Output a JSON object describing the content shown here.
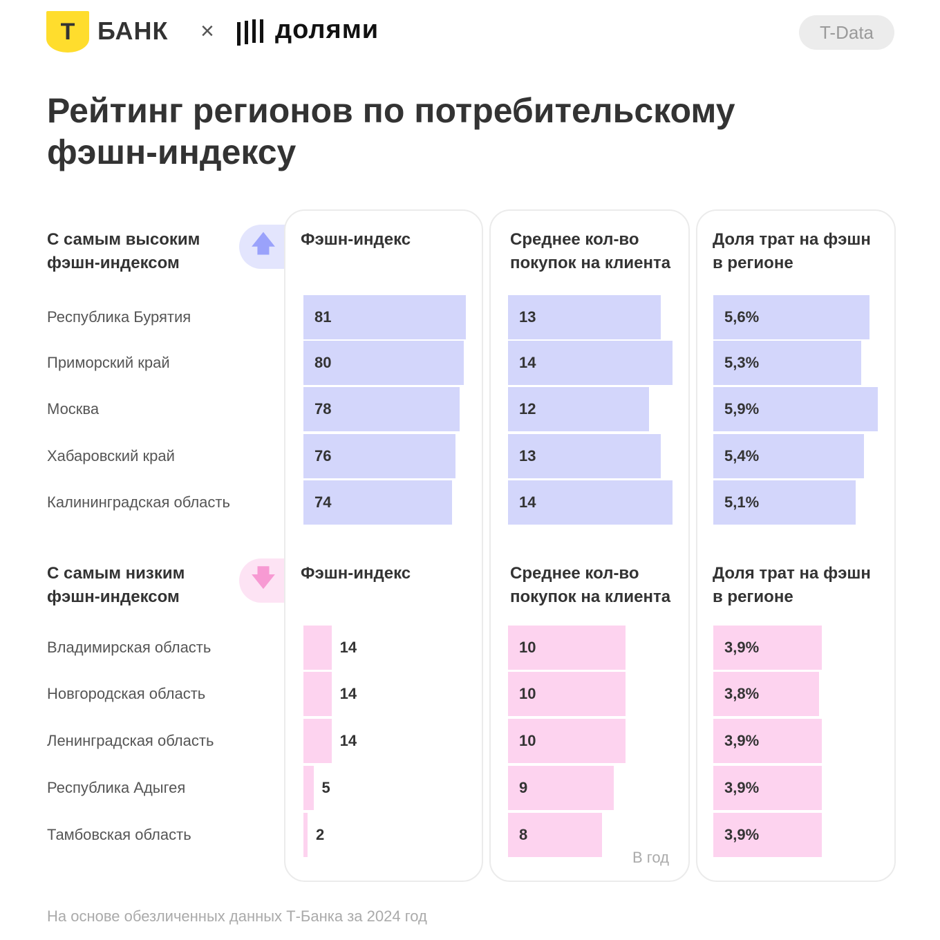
{
  "header": {
    "bank_logo": "БАНК",
    "bank_logo_letter": "Т",
    "times": "×",
    "partner_logo": "||||ДОЛЯМИ",
    "partner_text": "долями",
    "badge": "T-Data"
  },
  "title": "Рейтинг регионов по потребительскому фэшн-индексу",
  "colors": {
    "high": "#d3d6fb",
    "low": "#fdd3ef",
    "high_icon": "#9aa2fb",
    "low_icon": "#f79ad3",
    "brand": "#ffdd2d"
  },
  "chart_data": [
    {
      "type": "bar",
      "title": "С самым высоким фэшн-индексом",
      "icon": "arrow-up-icon",
      "categories": [
        "Республика Бурятия",
        "Приморский край",
        "Москва",
        "Хабаровский край",
        "Калининградская область"
      ],
      "series": [
        {
          "name": "Фэшн-индекс",
          "values": [
            81,
            80,
            78,
            76,
            74
          ],
          "labels": [
            "81",
            "80",
            "78",
            "76",
            "74"
          ]
        },
        {
          "name": "Среднее кол-во покупок на клиента",
          "values": [
            13,
            14,
            12,
            13,
            14
          ],
          "labels": [
            "13",
            "14",
            "12",
            "13",
            "14"
          ]
        },
        {
          "name": "Доля трат на фэшн в регионе",
          "values": [
            5.6,
            5.3,
            5.9,
            5.4,
            5.1
          ],
          "labels": [
            "5,6%",
            "5,3%",
            "5,9%",
            "5,4%",
            "5,1%"
          ]
        }
      ]
    },
    {
      "type": "bar",
      "title": "С самым низким фэшн-индексом",
      "icon": "arrow-down-icon",
      "categories": [
        "Владимирская область",
        "Новгородская область",
        "Ленинградская область",
        "Республика Адыгея",
        "Тамбовская область"
      ],
      "series": [
        {
          "name": "Фэшн-индекс",
          "values": [
            14,
            14,
            14,
            5,
            2
          ],
          "labels": [
            "14",
            "14",
            "14",
            "5",
            "2"
          ]
        },
        {
          "name": "Среднее кол-во покупок на клиента",
          "values": [
            10,
            10,
            10,
            9,
            8
          ],
          "labels": [
            "10",
            "10",
            "10",
            "9",
            "8"
          ],
          "note": "В год"
        },
        {
          "name": "Доля трат на фэшн в регионе",
          "values": [
            3.9,
            3.8,
            3.9,
            3.9,
            3.9
          ],
          "labels": [
            "3,9%",
            "3,8%",
            "3,9%",
            "3,9%",
            "3,9%"
          ]
        }
      ]
    }
  ],
  "footer": "На основе обезличенных данных Т-Банка за 2024 год"
}
